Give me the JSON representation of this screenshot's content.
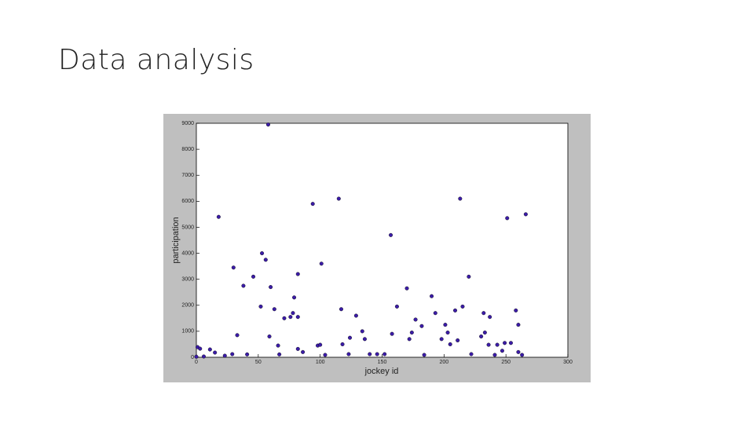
{
  "slide": {
    "title": "Data analysis"
  },
  "chart_data": {
    "type": "scatter",
    "x_label": "jockey id",
    "y_label": "participation",
    "color": "#3b1ca8",
    "x": [
      0,
      1,
      3,
      6,
      11,
      15,
      18,
      23,
      29,
      30,
      33,
      38,
      41,
      46,
      52,
      53,
      56,
      58,
      59,
      60,
      63,
      66,
      67,
      71,
      76,
      78,
      79,
      82,
      82,
      82,
      86,
      94,
      98,
      100,
      101,
      104,
      115,
      117,
      118,
      123,
      124,
      129,
      134,
      136,
      140,
      146,
      152,
      157,
      158,
      162,
      170,
      172,
      174,
      177,
      182,
      184,
      190,
      193,
      198,
      201,
      203,
      205,
      209,
      211,
      213,
      215,
      220,
      222,
      230,
      232,
      233,
      236,
      237,
      241,
      243,
      247,
      249,
      251,
      254,
      258,
      260,
      260,
      263,
      266
    ],
    "y": [
      20,
      390,
      330,
      30,
      300,
      180,
      5400,
      60,
      120,
      3450,
      850,
      2750,
      110,
      3100,
      1950,
      4000,
      3750,
      8950,
      800,
      2700,
      1850,
      450,
      110,
      1500,
      1550,
      1700,
      2300,
      3200,
      1550,
      320,
      200,
      5900,
      450,
      480,
      3600,
      90,
      6100,
      1850,
      500,
      120,
      750,
      1600,
      1000,
      700,
      120,
      120,
      120,
      4700,
      900,
      1950,
      2650,
      700,
      950,
      1450,
      1200,
      90,
      2350,
      1700,
      700,
      1250,
      950,
      500,
      1800,
      650,
      6100,
      1950,
      3100,
      120,
      800,
      1700,
      950,
      480,
      1550,
      90,
      480,
      250,
      550,
      5350,
      550,
      1800,
      1250,
      200,
      90,
      5500
    ],
    "xlim": [
      0,
      300
    ],
    "ylim": [
      0,
      9000
    ],
    "xticks": [
      0,
      50,
      100,
      150,
      200,
      250,
      300
    ],
    "yticks": [
      0,
      1000,
      2000,
      3000,
      4000,
      5000,
      6000,
      7000,
      8000,
      9000
    ]
  }
}
